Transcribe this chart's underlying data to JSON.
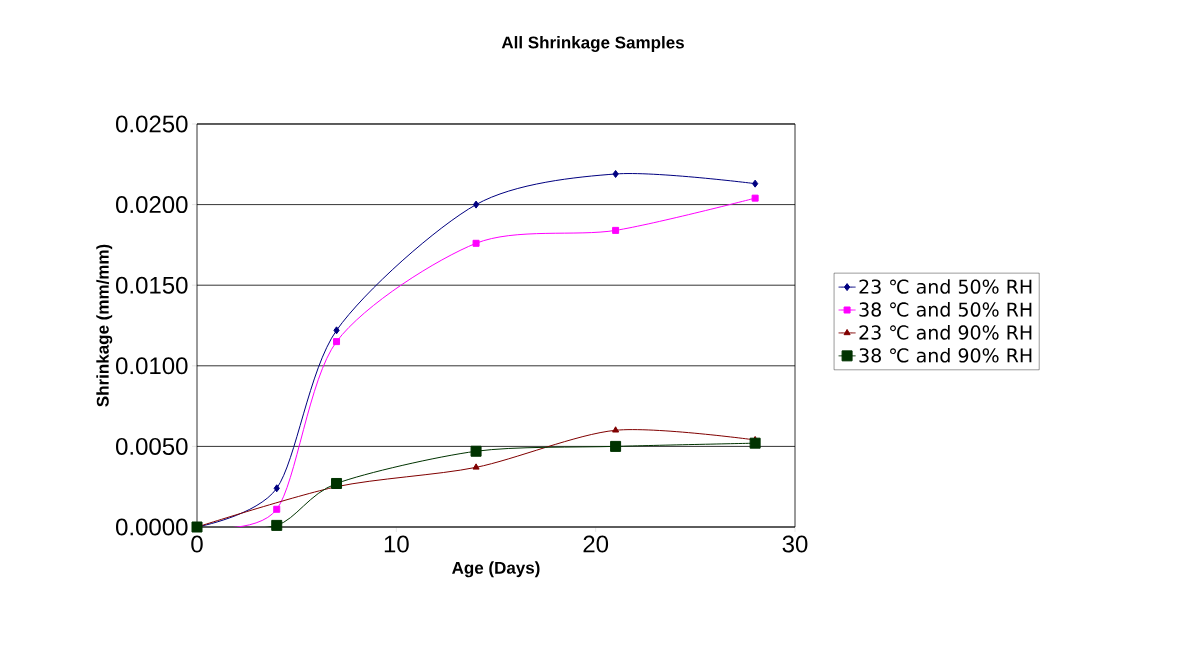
{
  "chart_data": {
    "type": "line",
    "title": "All Shrinkage Samples",
    "xlabel": "Age (Days)",
    "ylabel": "Shrinkage (mm/mm)",
    "x": [
      0,
      4,
      7,
      14,
      21,
      28
    ],
    "series": [
      {
        "name": "23 ℃ and 50% RH",
        "color": "#000080",
        "marker": "diamond",
        "values": [
          0.0,
          0.0024,
          0.0122,
          0.02,
          0.0219,
          0.0213
        ]
      },
      {
        "name": "38 ℃ and 50% RH",
        "color": "#ff00ff",
        "marker": "square",
        "values": [
          0.0,
          0.0011,
          0.0115,
          0.0176,
          0.0184,
          0.0204
        ]
      },
      {
        "name": "23 ℃ and 90% RH",
        "color": "#800000",
        "marker": "triangle",
        "values": [
          0.0,
          null,
          0.0025,
          0.0037,
          0.006,
          0.0054
        ]
      },
      {
        "name": "38 ℃ and 90% RH",
        "color": "#003300",
        "marker": "square",
        "values": [
          0.0,
          0.0001,
          0.0027,
          0.0047,
          0.005,
          0.0052
        ]
      }
    ],
    "xlim": [
      0,
      30
    ],
    "xticks": [
      0,
      10,
      20,
      30
    ],
    "ylim": [
      0,
      0.025
    ],
    "yticks": [
      {
        "value": 0,
        "label": "0.0000"
      },
      {
        "value": 0.005,
        "label": "0.0050"
      },
      {
        "value": 0.01,
        "label": "0.0100"
      },
      {
        "value": 0.015,
        "label": "0.0150"
      },
      {
        "value": 0.02,
        "label": "0.0200"
      },
      {
        "value": 0.025,
        "label": "0.0250"
      }
    ],
    "grid": "y",
    "legend": "right",
    "line_style": "solid"
  }
}
